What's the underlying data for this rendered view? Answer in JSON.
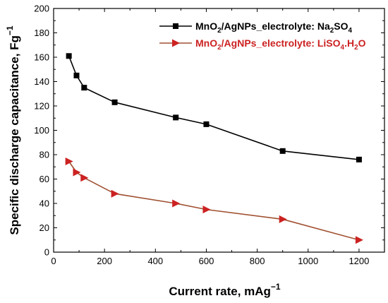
{
  "chart_data": {
    "type": "line",
    "title": "",
    "xlabel": {
      "main": "Current rate, mAg",
      "sup": "−1"
    },
    "ylabel": {
      "main": "Specific discharge capacitance, Fg",
      "sup": "−1"
    },
    "xlim": [
      0,
      1300
    ],
    "ylim": [
      0,
      200
    ],
    "xticks": [
      0,
      200,
      400,
      600,
      800,
      1000,
      1200
    ],
    "yticks": [
      0,
      20,
      40,
      60,
      80,
      100,
      120,
      140,
      160,
      180,
      200
    ],
    "grid": false,
    "legend_position": "top-right",
    "series": [
      {
        "name": "MnO2/AgNPs_electrolyte: Na2SO4",
        "legend": [
          {
            "t": "MnO",
            "s": "n"
          },
          {
            "t": "2",
            "s": "sub"
          },
          {
            "t": "/AgNPs_electrolyte: Na",
            "s": "n"
          },
          {
            "t": "2",
            "s": "sub"
          },
          {
            "t": "SO",
            "s": "n"
          },
          {
            "t": "4",
            "s": "sub"
          }
        ],
        "color": "#000000",
        "marker": "square",
        "x": [
          60,
          90,
          120,
          240,
          480,
          600,
          900,
          1200
        ],
        "y": [
          161,
          145,
          135,
          123,
          110.5,
          105,
          83,
          76
        ]
      },
      {
        "name": "MnO2/AgNPs_electrolyte: LiSO4.H2O",
        "legend": [
          {
            "t": "MnO",
            "s": "n"
          },
          {
            "t": "2",
            "s": "sub"
          },
          {
            "t": "/AgNPs_electrolyte: LiSO",
            "s": "n"
          },
          {
            "t": "4",
            "s": "sub"
          },
          {
            "t": ".H",
            "s": "n"
          },
          {
            "t": "2",
            "s": "sub"
          },
          {
            "t": "O",
            "s": "n"
          }
        ],
        "color": "#cc2222",
        "line_color": "#a05030",
        "marker": "triangle-right",
        "x": [
          60,
          90,
          120,
          240,
          480,
          600,
          900,
          1200
        ],
        "y": [
          74.5,
          65.5,
          61,
          48,
          40,
          35,
          27,
          10
        ]
      }
    ]
  }
}
